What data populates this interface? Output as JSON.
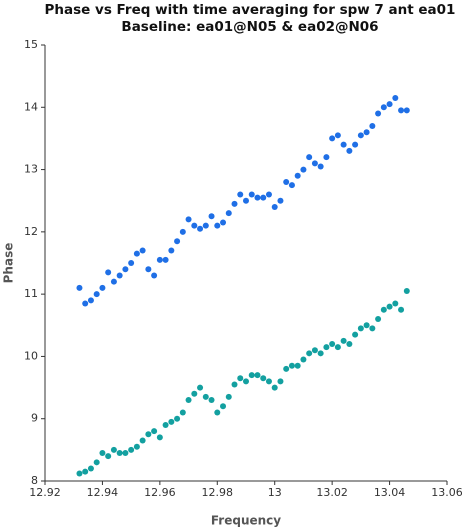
{
  "chart_data": {
    "type": "scatter",
    "title": "Phase vs Freq with time averaging for spw 7 ant ea01",
    "subtitle": "Baseline: ea01@N05 & ea02@N06",
    "x_label": "Frequency",
    "y_label": "Phase",
    "xlim": [
      12.92,
      13.06
    ],
    "xticks": [
      12.92,
      12.94,
      12.96,
      12.98,
      13,
      13.02,
      13.04,
      13.06
    ],
    "ylim": [
      8,
      15
    ],
    "yticks": [
      8,
      9,
      10,
      11,
      12,
      13,
      14,
      15
    ],
    "x": [
      12.932,
      12.934,
      12.936,
      12.938,
      12.94,
      12.942,
      12.944,
      12.946,
      12.948,
      12.95,
      12.952,
      12.954,
      12.956,
      12.958,
      12.96,
      12.962,
      12.964,
      12.966,
      12.968,
      12.97,
      12.972,
      12.974,
      12.976,
      12.978,
      12.98,
      12.982,
      12.984,
      12.986,
      12.988,
      12.99,
      12.992,
      12.994,
      12.996,
      12.998,
      13.0,
      13.002,
      13.004,
      13.006,
      13.008,
      13.01,
      13.012,
      13.014,
      13.016,
      13.018,
      13.02,
      13.022,
      13.024,
      13.026,
      13.028,
      13.03,
      13.032,
      13.034,
      13.036,
      13.038,
      13.04,
      13.042,
      13.044,
      13.046
    ],
    "series": [
      {
        "color": "#1f6fe6",
        "values": [
          11.1,
          10.85,
          10.9,
          11.0,
          11.1,
          11.35,
          11.2,
          11.3,
          11.4,
          11.5,
          11.65,
          11.7,
          11.4,
          11.3,
          11.55,
          11.55,
          11.7,
          11.85,
          12.0,
          12.2,
          12.1,
          12.05,
          12.1,
          12.25,
          12.1,
          12.15,
          12.3,
          12.45,
          12.6,
          12.5,
          12.6,
          12.55,
          12.55,
          12.6,
          12.4,
          12.5,
          12.8,
          12.75,
          12.9,
          13.0,
          13.2,
          13.1,
          13.05,
          13.2,
          13.5,
          13.55,
          13.4,
          13.3,
          13.4,
          13.55,
          13.6,
          13.7,
          13.9,
          14.0,
          14.05,
          14.15,
          13.95,
          13.95
        ]
      },
      {
        "color": "#13a0a0",
        "values": [
          8.12,
          8.15,
          8.2,
          8.3,
          8.45,
          8.4,
          8.5,
          8.45,
          8.45,
          8.5,
          8.55,
          8.65,
          8.75,
          8.8,
          8.7,
          8.9,
          8.95,
          9.0,
          9.1,
          9.3,
          9.4,
          9.5,
          9.35,
          9.3,
          9.1,
          9.2,
          9.35,
          9.55,
          9.65,
          9.6,
          9.7,
          9.7,
          9.65,
          9.6,
          9.5,
          9.6,
          9.8,
          9.85,
          9.85,
          9.95,
          10.05,
          10.1,
          10.05,
          10.15,
          10.2,
          10.15,
          10.25,
          10.2,
          10.35,
          10.45,
          10.5,
          10.45,
          10.6,
          10.75,
          10.8,
          10.85,
          10.75,
          11.05
        ]
      }
    ]
  }
}
